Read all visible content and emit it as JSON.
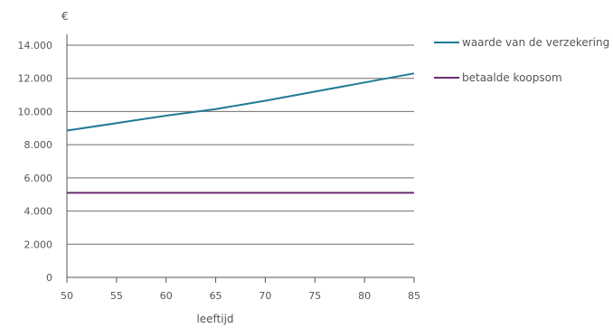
{
  "chart_data": {
    "type": "line",
    "title": "",
    "xlabel": "leeftijd",
    "ylabel": "€",
    "xlim": [
      50,
      85
    ],
    "ylim": [
      0,
      14000
    ],
    "x_ticks": [
      50,
      55,
      60,
      65,
      70,
      75,
      80,
      85
    ],
    "y_ticks": [
      0,
      2000,
      4000,
      6000,
      8000,
      10000,
      12000,
      14000
    ],
    "y_tick_labels": [
      "0",
      "2.000",
      "4.000",
      "6.000",
      "8.000",
      "10.000",
      "12.000",
      "14.000"
    ],
    "grid": "horizontal",
    "legend_position": "right",
    "series": [
      {
        "name": "waarde van de verzekering",
        "color": "#1f7a96",
        "x": [
          50,
          55,
          60,
          65,
          70,
          75,
          80,
          85
        ],
        "y": [
          8850,
          9300,
          9750,
          10150,
          10650,
          11200,
          11750,
          12300
        ]
      },
      {
        "name": "betaalde koopsom",
        "color": "#6b2a73",
        "x": [
          50,
          85
        ],
        "y": [
          5100,
          5100
        ]
      }
    ]
  }
}
